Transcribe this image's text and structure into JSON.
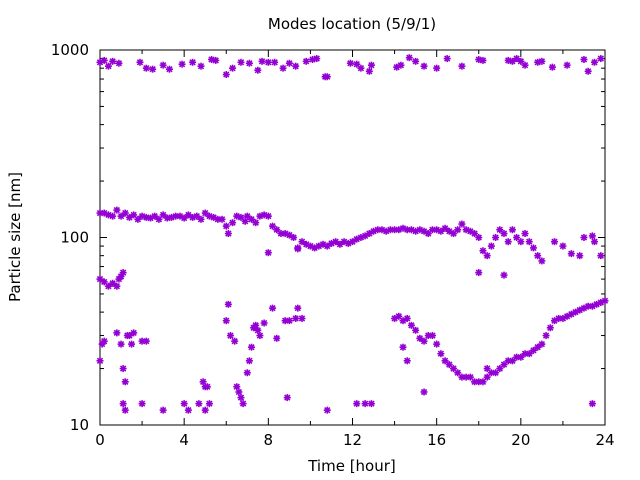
{
  "chart_data": {
    "type": "scatter",
    "title": "Modes location (5/9/1)",
    "xlabel": "Time [hour]",
    "ylabel": "Particle size [nm]",
    "xlim": [
      0,
      24
    ],
    "ylim": [
      10,
      1000
    ],
    "yscale": "log",
    "x_ticks": [
      0,
      4,
      8,
      12,
      16,
      20,
      24
    ],
    "y_ticks": [
      10,
      100,
      1000
    ],
    "grid": false,
    "legend": "none",
    "marker_color": "#9400d3",
    "series": [
      {
        "name": "",
        "points": [
          [
            0.0,
            860
          ],
          [
            0.2,
            880
          ],
          [
            0.4,
            820
          ],
          [
            0.6,
            870
          ],
          [
            0.9,
            850
          ],
          [
            1.9,
            860
          ],
          [
            2.2,
            800
          ],
          [
            2.5,
            790
          ],
          [
            3.0,
            830
          ],
          [
            3.3,
            790
          ],
          [
            3.9,
            840
          ],
          [
            4.4,
            860
          ],
          [
            4.8,
            820
          ],
          [
            5.3,
            890
          ],
          [
            5.5,
            880
          ],
          [
            6.0,
            740
          ],
          [
            6.3,
            800
          ],
          [
            6.7,
            860
          ],
          [
            7.1,
            850
          ],
          [
            7.5,
            780
          ],
          [
            7.7,
            870
          ],
          [
            8.0,
            860
          ],
          [
            8.3,
            860
          ],
          [
            8.7,
            800
          ],
          [
            9.0,
            850
          ],
          [
            9.3,
            820
          ],
          [
            9.8,
            870
          ],
          [
            10.1,
            890
          ],
          [
            10.3,
            900
          ],
          [
            10.7,
            720
          ],
          [
            10.8,
            720
          ],
          [
            11.9,
            850
          ],
          [
            12.2,
            840
          ],
          [
            12.4,
            800
          ],
          [
            12.8,
            770
          ],
          [
            12.9,
            830
          ],
          [
            14.1,
            810
          ],
          [
            14.3,
            830
          ],
          [
            14.7,
            910
          ],
          [
            15.0,
            870
          ],
          [
            15.4,
            820
          ],
          [
            16.0,
            800
          ],
          [
            16.5,
            900
          ],
          [
            17.2,
            820
          ],
          [
            18.0,
            890
          ],
          [
            18.2,
            880
          ],
          [
            19.4,
            880
          ],
          [
            19.6,
            870
          ],
          [
            19.8,
            900
          ],
          [
            20.0,
            870
          ],
          [
            20.2,
            830
          ],
          [
            20.8,
            860
          ],
          [
            21.0,
            870
          ],
          [
            21.5,
            810
          ],
          [
            22.2,
            830
          ],
          [
            23.0,
            890
          ],
          [
            23.2,
            770
          ],
          [
            23.5,
            860
          ],
          [
            23.8,
            900
          ],
          [
            0.0,
            135
          ],
          [
            0.2,
            135
          ],
          [
            0.4,
            132
          ],
          [
            0.6,
            130
          ],
          [
            0.8,
            140
          ],
          [
            1.0,
            130
          ],
          [
            1.2,
            135
          ],
          [
            1.4,
            128
          ],
          [
            1.6,
            132
          ],
          [
            1.8,
            125
          ],
          [
            2.0,
            130
          ],
          [
            2.2,
            128
          ],
          [
            2.4,
            127
          ],
          [
            2.6,
            130
          ],
          [
            2.8,
            125
          ],
          [
            3.0,
            132
          ],
          [
            3.2,
            127
          ],
          [
            3.4,
            128
          ],
          [
            3.6,
            130
          ],
          [
            3.8,
            130
          ],
          [
            4.0,
            127
          ],
          [
            4.2,
            132
          ],
          [
            4.4,
            128
          ],
          [
            4.6,
            130
          ],
          [
            4.8,
            125
          ],
          [
            5.0,
            135
          ],
          [
            5.2,
            130
          ],
          [
            5.4,
            128
          ],
          [
            5.6,
            125
          ],
          [
            5.8,
            125
          ],
          [
            6.0,
            115
          ],
          [
            6.1,
            105
          ],
          [
            6.3,
            120
          ],
          [
            6.5,
            130
          ],
          [
            6.7,
            128
          ],
          [
            6.9,
            122
          ],
          [
            7.0,
            130
          ],
          [
            7.2,
            125
          ],
          [
            7.4,
            120
          ],
          [
            7.6,
            130
          ],
          [
            7.8,
            132
          ],
          [
            8.0,
            130
          ],
          [
            8.2,
            115
          ],
          [
            8.4,
            110
          ],
          [
            8.6,
            105
          ],
          [
            8.8,
            105
          ],
          [
            9.0,
            103
          ],
          [
            9.2,
            100
          ],
          [
            9.4,
            88
          ],
          [
            9.6,
            95
          ],
          [
            9.8,
            92
          ],
          [
            10.0,
            90
          ],
          [
            10.2,
            88
          ],
          [
            10.4,
            90
          ],
          [
            10.6,
            92
          ],
          [
            10.8,
            90
          ],
          [
            11.0,
            93
          ],
          [
            11.2,
            95
          ],
          [
            11.4,
            92
          ],
          [
            11.6,
            95
          ],
          [
            11.8,
            93
          ],
          [
            12.0,
            95
          ],
          [
            12.2,
            98
          ],
          [
            12.4,
            100
          ],
          [
            12.6,
            102
          ],
          [
            12.8,
            105
          ],
          [
            13.0,
            108
          ],
          [
            13.2,
            110
          ],
          [
            13.4,
            110
          ],
          [
            13.6,
            108
          ],
          [
            13.8,
            110
          ],
          [
            14.0,
            110
          ],
          [
            14.2,
            110
          ],
          [
            14.4,
            112
          ],
          [
            14.6,
            110
          ],
          [
            14.8,
            110
          ],
          [
            15.0,
            108
          ],
          [
            15.2,
            110
          ],
          [
            15.4,
            108
          ],
          [
            15.6,
            105
          ],
          [
            15.8,
            110
          ],
          [
            16.0,
            110
          ],
          [
            16.2,
            108
          ],
          [
            16.4,
            112
          ],
          [
            16.6,
            108
          ],
          [
            16.8,
            105
          ],
          [
            17.0,
            110
          ],
          [
            17.2,
            118
          ],
          [
            17.4,
            110
          ],
          [
            17.6,
            108
          ],
          [
            17.8,
            105
          ],
          [
            18.0,
            100
          ],
          [
            18.2,
            85
          ],
          [
            18.4,
            80
          ],
          [
            18.6,
            90
          ],
          [
            18.8,
            100
          ],
          [
            19.0,
            110
          ],
          [
            19.2,
            105
          ],
          [
            19.4,
            95
          ],
          [
            19.6,
            110
          ],
          [
            19.8,
            100
          ],
          [
            20.0,
            95
          ],
          [
            20.2,
            105
          ],
          [
            20.4,
            95
          ],
          [
            20.6,
            88
          ],
          [
            20.8,
            80
          ],
          [
            21.0,
            75
          ],
          [
            21.6,
            95
          ],
          [
            22.0,
            90
          ],
          [
            22.4,
            82
          ],
          [
            22.8,
            80
          ],
          [
            23.0,
            100
          ],
          [
            23.4,
            102
          ],
          [
            23.5,
            95
          ],
          [
            23.8,
            80
          ],
          [
            8.0,
            83
          ],
          [
            18.0,
            65
          ],
          [
            19.2,
            63
          ],
          [
            9.4,
            87
          ],
          [
            0.0,
            60
          ],
          [
            0.2,
            58
          ],
          [
            0.4,
            55
          ],
          [
            0.6,
            57
          ],
          [
            0.8,
            55
          ],
          [
            0.9,
            60
          ],
          [
            1.0,
            62
          ],
          [
            1.1,
            65
          ],
          [
            0.0,
            22
          ],
          [
            0.1,
            27
          ],
          [
            0.2,
            28
          ],
          [
            0.8,
            31
          ],
          [
            1.0,
            27
          ],
          [
            1.1,
            20
          ],
          [
            1.2,
            17
          ],
          [
            1.3,
            30
          ],
          [
            1.4,
            30
          ],
          [
            1.6,
            31
          ],
          [
            1.5,
            27
          ],
          [
            2.0,
            28
          ],
          [
            2.2,
            28
          ],
          [
            1.2,
            12
          ],
          [
            1.1,
            13
          ],
          [
            2.0,
            13
          ],
          [
            3.0,
            12
          ],
          [
            4.0,
            13
          ],
          [
            4.2,
            12
          ],
          [
            4.7,
            13
          ],
          [
            5.0,
            12
          ],
          [
            5.2,
            13
          ],
          [
            4.9,
            17
          ],
          [
            5.0,
            16
          ],
          [
            5.1,
            16
          ],
          [
            6.0,
            36
          ],
          [
            6.1,
            44
          ],
          [
            6.2,
            30
          ],
          [
            6.4,
            28
          ],
          [
            6.5,
            16
          ],
          [
            6.6,
            15
          ],
          [
            6.7,
            14
          ],
          [
            6.8,
            13
          ],
          [
            7.0,
            19
          ],
          [
            7.1,
            22
          ],
          [
            7.2,
            26
          ],
          [
            7.3,
            33
          ],
          [
            7.4,
            34
          ],
          [
            7.5,
            32
          ],
          [
            7.6,
            30
          ],
          [
            7.8,
            35
          ],
          [
            8.2,
            42
          ],
          [
            8.4,
            29
          ],
          [
            8.8,
            36
          ],
          [
            9.0,
            36
          ],
          [
            9.3,
            37
          ],
          [
            9.4,
            42
          ],
          [
            9.6,
            37
          ],
          [
            8.9,
            14
          ],
          [
            10.8,
            12
          ],
          [
            12.2,
            13
          ],
          [
            12.6,
            13
          ],
          [
            12.9,
            13
          ],
          [
            14.0,
            37
          ],
          [
            14.2,
            38
          ],
          [
            14.4,
            36
          ],
          [
            14.6,
            37
          ],
          [
            14.8,
            34
          ],
          [
            15.0,
            32
          ],
          [
            15.2,
            29
          ],
          [
            15.4,
            28
          ],
          [
            15.6,
            30
          ],
          [
            15.8,
            30
          ],
          [
            16.0,
            27
          ],
          [
            16.2,
            24
          ],
          [
            16.4,
            22
          ],
          [
            16.6,
            21
          ],
          [
            16.8,
            20
          ],
          [
            17.0,
            19
          ],
          [
            17.2,
            18
          ],
          [
            17.4,
            18
          ],
          [
            17.6,
            18
          ],
          [
            17.8,
            17
          ],
          [
            18.0,
            17
          ],
          [
            18.2,
            17
          ],
          [
            18.4,
            18
          ],
          [
            18.6,
            19
          ],
          [
            18.8,
            19
          ],
          [
            19.0,
            20
          ],
          [
            19.2,
            21
          ],
          [
            19.4,
            22
          ],
          [
            19.6,
            22
          ],
          [
            19.8,
            23
          ],
          [
            20.0,
            23
          ],
          [
            20.2,
            24
          ],
          [
            20.4,
            24
          ],
          [
            20.6,
            25
          ],
          [
            20.8,
            26
          ],
          [
            21.0,
            27
          ],
          [
            21.2,
            30
          ],
          [
            21.4,
            33
          ],
          [
            21.6,
            36
          ],
          [
            21.8,
            37
          ],
          [
            22.0,
            37
          ],
          [
            22.2,
            38
          ],
          [
            22.4,
            39
          ],
          [
            22.6,
            40
          ],
          [
            22.8,
            41
          ],
          [
            23.0,
            42
          ],
          [
            23.2,
            43
          ],
          [
            23.4,
            43
          ],
          [
            23.6,
            44
          ],
          [
            23.8,
            45
          ],
          [
            24.0,
            46
          ],
          [
            14.4,
            26
          ],
          [
            14.6,
            22
          ],
          [
            15.4,
            15
          ],
          [
            18.4,
            20
          ],
          [
            23.4,
            13
          ]
        ]
      }
    ]
  }
}
